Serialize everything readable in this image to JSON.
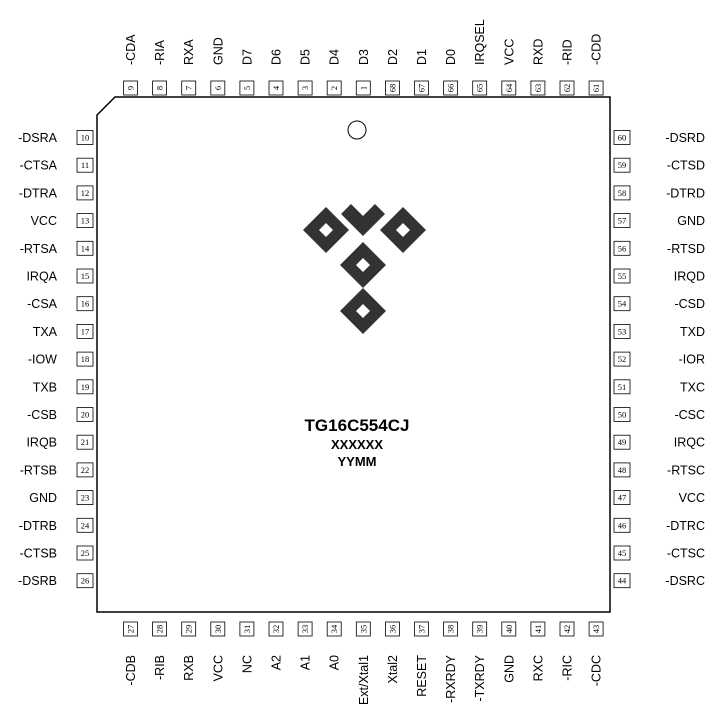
{
  "chip": {
    "part_number": "TG16C554CJ",
    "line2": "XXXXXX",
    "line3": "YYMM"
  },
  "pins": {
    "top": [
      {
        "num": "9",
        "label": "-CDA"
      },
      {
        "num": "8",
        "label": "-RIA"
      },
      {
        "num": "7",
        "label": "RXA"
      },
      {
        "num": "6",
        "label": "GND"
      },
      {
        "num": "5",
        "label": "D7"
      },
      {
        "num": "4",
        "label": "D6"
      },
      {
        "num": "3",
        "label": "D5"
      },
      {
        "num": "2",
        "label": "D4"
      },
      {
        "num": "1",
        "label": "D3"
      },
      {
        "num": "68",
        "label": "D2"
      },
      {
        "num": "67",
        "label": "D1"
      },
      {
        "num": "66",
        "label": "D0"
      },
      {
        "num": "65",
        "label": "IRQSEL"
      },
      {
        "num": "64",
        "label": "VCC"
      },
      {
        "num": "63",
        "label": "RXD"
      },
      {
        "num": "62",
        "label": "-RID"
      },
      {
        "num": "61",
        "label": "-CDD"
      }
    ],
    "left": [
      {
        "num": "10",
        "label": "-DSRA"
      },
      {
        "num": "11",
        "label": "-CTSA"
      },
      {
        "num": "12",
        "label": "-DTRA"
      },
      {
        "num": "13",
        "label": "VCC"
      },
      {
        "num": "14",
        "label": "-RTSA"
      },
      {
        "num": "15",
        "label": "IRQA"
      },
      {
        "num": "16",
        "label": "-CSA"
      },
      {
        "num": "17",
        "label": "TXA"
      },
      {
        "num": "18",
        "label": "-IOW"
      },
      {
        "num": "19",
        "label": "TXB"
      },
      {
        "num": "20",
        "label": "-CSB"
      },
      {
        "num": "21",
        "label": "IRQB"
      },
      {
        "num": "22",
        "label": "-RTSB"
      },
      {
        "num": "23",
        "label": "GND"
      },
      {
        "num": "24",
        "label": "-DTRB"
      },
      {
        "num": "25",
        "label": "-CTSB"
      },
      {
        "num": "26",
        "label": "-DSRB"
      }
    ],
    "right": [
      {
        "num": "60",
        "label": "-DSRD"
      },
      {
        "num": "59",
        "label": "-CTSD"
      },
      {
        "num": "58",
        "label": "-DTRD"
      },
      {
        "num": "57",
        "label": "GND"
      },
      {
        "num": "56",
        "label": "-RTSD"
      },
      {
        "num": "55",
        "label": "IRQD"
      },
      {
        "num": "54",
        "label": "-CSD"
      },
      {
        "num": "53",
        "label": "TXD"
      },
      {
        "num": "52",
        "label": "-IOR"
      },
      {
        "num": "51",
        "label": "TXC"
      },
      {
        "num": "50",
        "label": "-CSC"
      },
      {
        "num": "49",
        "label": "IRQC"
      },
      {
        "num": "48",
        "label": "-RTSC"
      },
      {
        "num": "47",
        "label": "VCC"
      },
      {
        "num": "46",
        "label": "-DTRC"
      },
      {
        "num": "45",
        "label": "-CTSC"
      },
      {
        "num": "44",
        "label": "-DSRC"
      }
    ],
    "bottom": [
      {
        "num": "27",
        "label": "-CDB"
      },
      {
        "num": "28",
        "label": "-RIB"
      },
      {
        "num": "29",
        "label": "RXB"
      },
      {
        "num": "30",
        "label": "VCC"
      },
      {
        "num": "31",
        "label": "NC"
      },
      {
        "num": "32",
        "label": "A2"
      },
      {
        "num": "33",
        "label": "A1"
      },
      {
        "num": "34",
        "label": "A0"
      },
      {
        "num": "35",
        "label": "Ext/Xtal1"
      },
      {
        "num": "36",
        "label": "Xtal2"
      },
      {
        "num": "37",
        "label": "RESET"
      },
      {
        "num": "38",
        "label": "-RXRDY"
      },
      {
        "num": "39",
        "label": "-TXRDY"
      },
      {
        "num": "40",
        "label": "GND"
      },
      {
        "num": "41",
        "label": "RXC"
      },
      {
        "num": "42",
        "label": "-RIC"
      },
      {
        "num": "43",
        "label": "-CDC"
      }
    ]
  }
}
